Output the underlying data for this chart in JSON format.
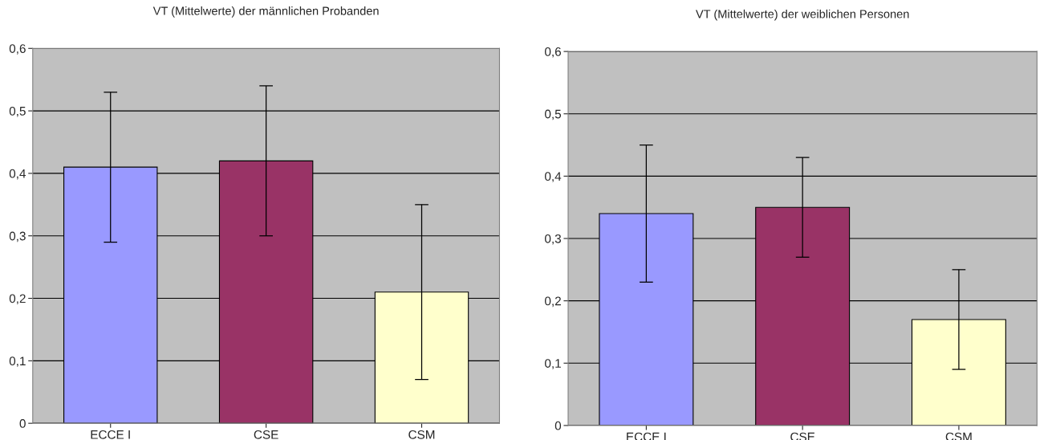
{
  "chart_data": [
    {
      "type": "bar",
      "title": "VT (Mittelwerte) der männlichen Probanden",
      "categories": [
        "ECCE I",
        "CSE",
        "CSM"
      ],
      "values": [
        0.41,
        0.42,
        0.21
      ],
      "colors": [
        "#9999ff",
        "#993366",
        "#ffffcc"
      ],
      "errors": [
        [
          0.29,
          0.53
        ],
        [
          0.3,
          0.54
        ],
        [
          0.07,
          0.35
        ]
      ],
      "ylim": [
        0,
        0.6
      ],
      "yticks": [
        0,
        {
          "value": 0.1,
          "label": "0,1"
        },
        {
          "value": 0.2,
          "label": "0,2"
        },
        {
          "value": 0.3,
          "label": "0,3"
        },
        {
          "value": 0.4,
          "label": "0,4"
        },
        {
          "value": 0.5,
          "label": "0,5"
        },
        {
          "value": 0.6,
          "label": "0,6"
        }
      ],
      "grid": "y",
      "legend": false
    },
    {
      "type": "bar",
      "title": "VT (Mittelwerte) der weiblichen Personen",
      "categories": [
        "ECCE I",
        "CSE",
        "CSM"
      ],
      "values": [
        0.34,
        0.35,
        0.17
      ],
      "colors": [
        "#9999ff",
        "#993366",
        "#ffffcc"
      ],
      "errors": [
        [
          0.23,
          0.45
        ],
        [
          0.27,
          0.43
        ],
        [
          0.09,
          0.25
        ]
      ],
      "ylim": [
        0,
        0.6
      ],
      "yticks": [
        0,
        {
          "value": 0.1,
          "label": "0,1"
        },
        {
          "value": 0.2,
          "label": "0,2"
        },
        {
          "value": 0.3,
          "label": "0,3"
        },
        {
          "value": 0.4,
          "label": "0,4"
        },
        {
          "value": 0.5,
          "label": "0,5"
        },
        {
          "value": 0.6,
          "label": "0,6"
        }
      ],
      "grid": "y",
      "legend": false
    }
  ]
}
